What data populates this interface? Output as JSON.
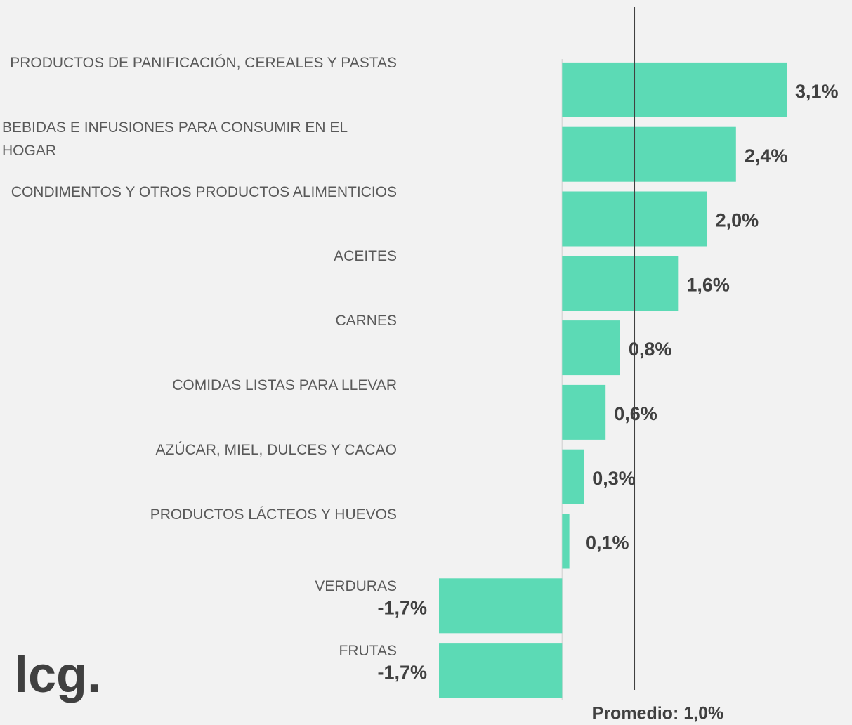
{
  "chart_data": {
    "type": "barh",
    "categories": [
      "PRODUCTOS DE PANIFICACIÓN, CEREALES Y PASTAS",
      "BEBIDAS E INFUSIONES PARA CONSUMIR EN EL HOGAR",
      "CONDIMENTOS Y OTROS PRODUCTOS ALIMENTICIOS",
      "ACEITES",
      "CARNES",
      "COMIDAS LISTAS PARA LLEVAR",
      "AZÚCAR, MIEL, DULCES Y CACAO",
      "PRODUCTOS LÁCTEOS Y HUEVOS",
      "VERDURAS",
      "FRUTAS"
    ],
    "values": [
      3.1,
      2.4,
      2.0,
      1.6,
      0.8,
      0.6,
      0.3,
      0.1,
      -1.7,
      -1.7
    ],
    "value_labels": [
      "3,1%",
      "2,4%",
      "2,0%",
      "1,6%",
      "0,8%",
      "0,6%",
      "0,3%",
      "0,1%",
      "-1,7%",
      "-1,7%"
    ],
    "color": "#5cdab5",
    "average": 1.0,
    "average_label": "Promedio: 1,0%",
    "logo": "lcg."
  }
}
